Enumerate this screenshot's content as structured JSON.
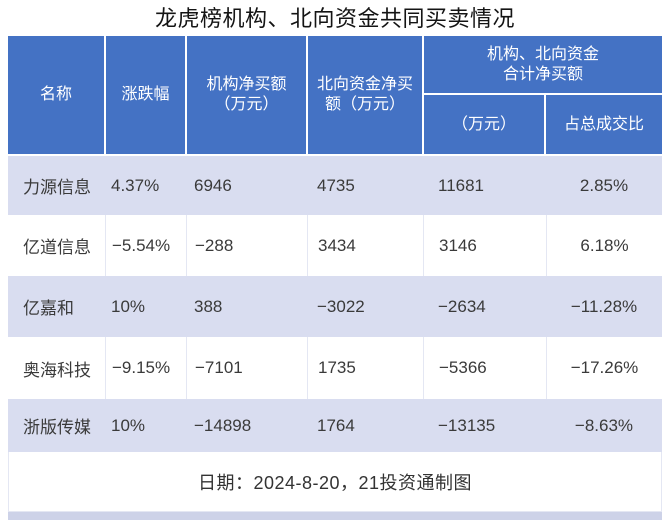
{
  "title": "龙虎榜机构、北向资金共同买卖情况",
  "colors": {
    "header_bg": "#4472c4",
    "header_text": "#ffffff",
    "row_alt_bg": "#d9ddf0",
    "row_bg": "#ffffff",
    "body_text": "#3a3a3a",
    "divider": "#e4e7f3",
    "bottom_strip": "#cdd2e8"
  },
  "table": {
    "header": {
      "name": "名称",
      "change": "涨跌幅",
      "inst": "机构净买额\n（万元）",
      "north": "北向资金净买\n额（万元）",
      "group": "机构、北向资金\n合计净买额",
      "amount": "（万元）",
      "ratio": "占总成交比"
    },
    "rows": [
      {
        "name": "力源信息",
        "change": "4.37%",
        "inst": "6946",
        "north": "4735",
        "total": "11681",
        "ratio": "2.85%"
      },
      {
        "name": "亿道信息",
        "change": "−5.54%",
        "inst": "−288",
        "north": "3434",
        "total": "3146",
        "ratio": "6.18%"
      },
      {
        "name": "亿嘉和",
        "change": "10%",
        "inst": "388",
        "north": "−3022",
        "total": "−2634",
        "ratio": "−11.28%"
      },
      {
        "name": "奥海科技",
        "change": "−9.15%",
        "inst": "−7101",
        "north": "1735",
        "total": "−5366",
        "ratio": "−17.26%"
      },
      {
        "name": "浙版传媒",
        "change": "10%",
        "inst": "−14898",
        "north": "1764",
        "total": "−13135",
        "ratio": "−8.63%"
      }
    ],
    "footer": "日期：2024-8-20，21投资通制图"
  },
  "chart_data": {
    "type": "table",
    "title": "龙虎榜机构、北向资金共同买卖情况",
    "columns": [
      "名称",
      "涨跌幅",
      "机构净买额（万元）",
      "北向资金净买额（万元）",
      "机构、北向资金合计净买额（万元）",
      "机构、北向资金合计净买额占总成交比"
    ],
    "rows": [
      [
        "力源信息",
        "4.37%",
        6946,
        4735,
        11681,
        "2.85%"
      ],
      [
        "亿道信息",
        "−5.54%",
        -288,
        3434,
        3146,
        "6.18%"
      ],
      [
        "亿嘉和",
        "10%",
        388,
        -3022,
        -2634,
        "−11.28%"
      ],
      [
        "奥海科技",
        "−9.15%",
        -7101,
        1735,
        -5366,
        "−17.26%"
      ],
      [
        "浙版传媒",
        "10%",
        -14898,
        1764,
        -13135,
        "−8.63%"
      ]
    ],
    "note": "日期：2024-8-20，21投资通制图"
  }
}
